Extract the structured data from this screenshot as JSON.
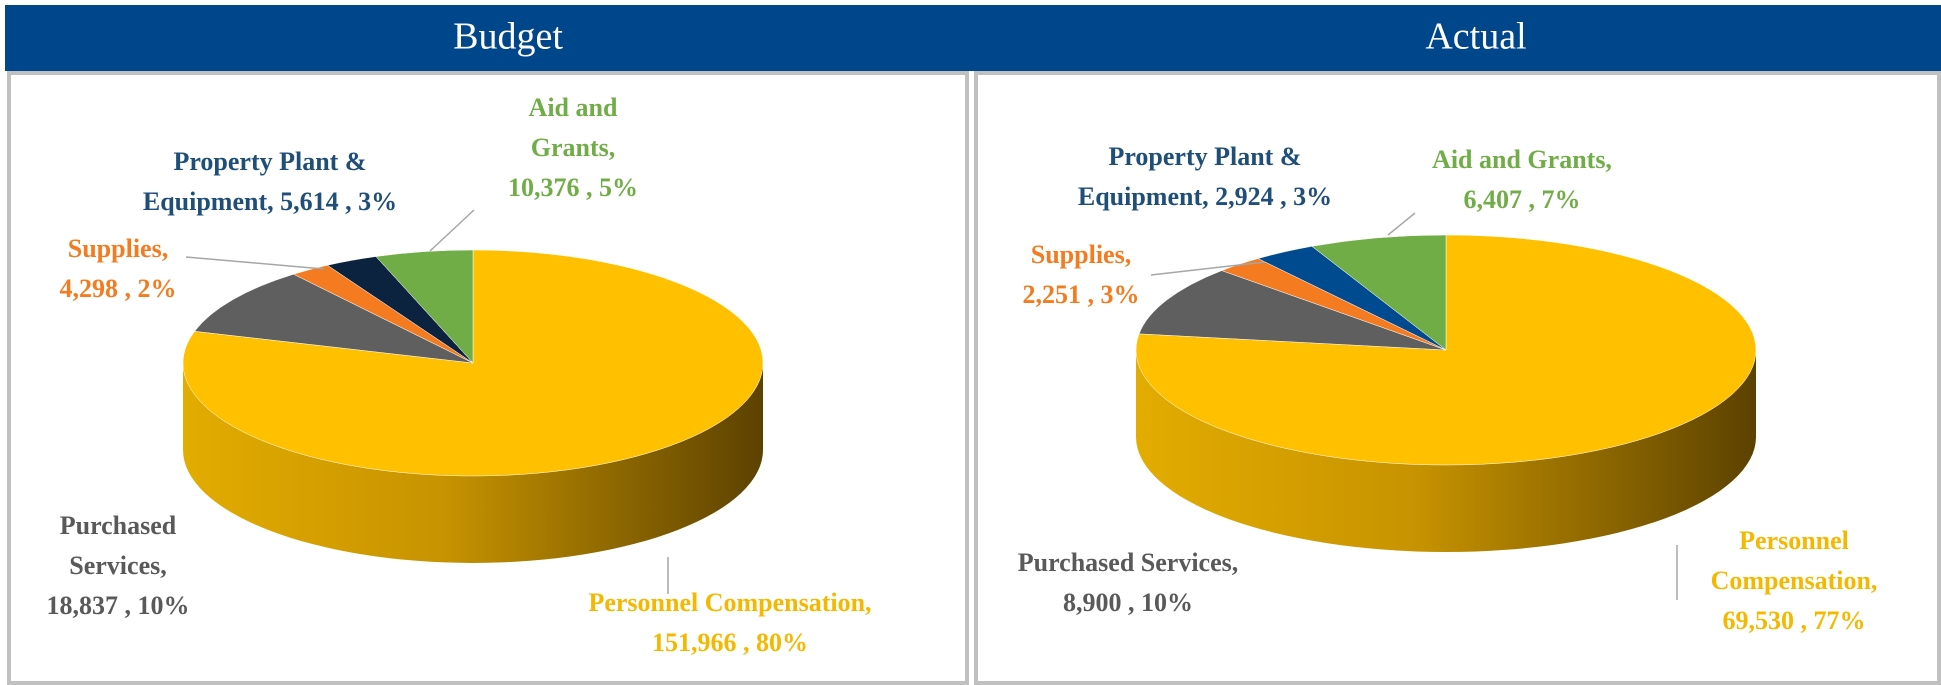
{
  "chart_data": [
    {
      "type": "pie",
      "title": "Budget",
      "categories": [
        "Personnel Compensation,",
        "Purchased Services,",
        "Supplies,",
        "Property Plant & Equipment,",
        "Aid and Grants,"
      ],
      "values": [
        151966,
        18837,
        4298,
        5614,
        10376
      ],
      "value_labels": [
        "151,966 ,",
        "18,837 ,",
        "4,298 ,",
        "5,614 ,",
        "10,376 ,"
      ],
      "percentages": [
        80,
        10,
        2,
        3,
        5
      ],
      "percent_labels": [
        "80%",
        "10%",
        "2%",
        "3%",
        "5%"
      ],
      "colors": [
        "#FFC000",
        "#5F5F5F",
        "#F47B20",
        "#0C2340",
        "#70AD47"
      ],
      "label_colors": [
        "#F5B800",
        "#595959",
        "#F47B20",
        "#1F4E79",
        "#70AD47"
      ]
    },
    {
      "type": "pie",
      "title": "Actual",
      "categories": [
        "Personnel Compensation,",
        "Purchased Services,",
        "Supplies,",
        "Property Plant & Equipment,",
        "Aid and Grants,"
      ],
      "values": [
        69530,
        8900,
        2251,
        2924,
        6407
      ],
      "value_labels": [
        "69,530 ,",
        "8,900 ,",
        "2,251 ,",
        "2,924 ,",
        "6,407 ,"
      ],
      "percentages": [
        77,
        10,
        3,
        3,
        7
      ],
      "percent_labels": [
        "77%",
        "10%",
        "3%",
        "3%",
        "7%"
      ],
      "colors": [
        "#FFC000",
        "#5F5F5F",
        "#F47B20",
        "#004A8F",
        "#70AD47"
      ],
      "label_colors": [
        "#F5B800",
        "#595959",
        "#F47B20",
        "#1F4E79",
        "#70AD47"
      ]
    }
  ]
}
